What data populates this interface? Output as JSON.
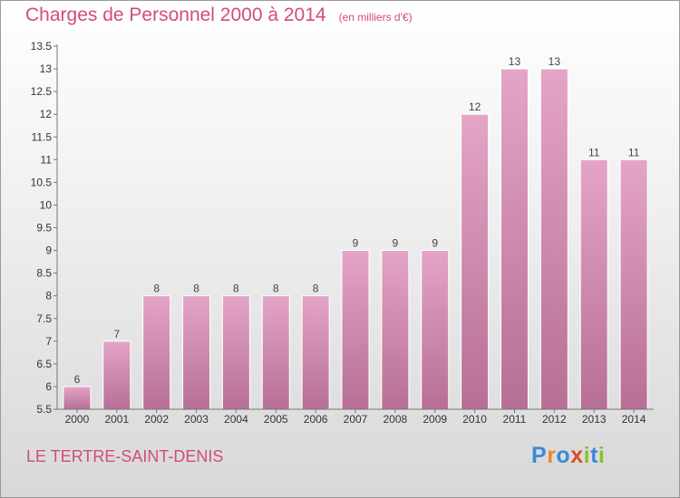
{
  "title": "Charges de Personnel 2000 à 2014",
  "unit_note": "(en milliers d'€)",
  "commune": "LE TERTRE-SAINT-DENIS",
  "logo": {
    "letters": [
      "P",
      "r",
      "o",
      "x",
      "i",
      "t",
      "i"
    ],
    "colors": [
      "#3a8ad6",
      "#e98a2a",
      "#3a8ad6",
      "#e04b2c",
      "#8bbf32",
      "#3a8ad6",
      "#8bbf32"
    ]
  },
  "colors": {
    "accent": "#d54a7e",
    "bar_top": "#e4a4c8",
    "bar_bottom": "#b76f96"
  },
  "chart_data": {
    "type": "bar",
    "categories": [
      "2000",
      "2001",
      "2002",
      "2003",
      "2004",
      "2005",
      "2006",
      "2007",
      "2008",
      "2009",
      "2010",
      "2011",
      "2012",
      "2013",
      "2014"
    ],
    "values": [
      6,
      7,
      8,
      8,
      8,
      8,
      8,
      9,
      9,
      9,
      12,
      13,
      13,
      11,
      11
    ],
    "value_labels": [
      "6",
      "7",
      "8",
      "8",
      "8",
      "8",
      "8",
      "9",
      "9",
      "9",
      "12",
      "13",
      "13",
      "11",
      "11"
    ],
    "yticks": [
      5.5,
      6,
      6.5,
      7,
      7.5,
      8,
      8.5,
      9,
      9.5,
      10,
      10.5,
      11,
      11.5,
      12,
      12.5,
      13,
      13.5
    ],
    "ytick_labels": [
      "5.5",
      "6",
      "6.5",
      "7",
      "7.5",
      "8",
      "8.5",
      "9",
      "9.5",
      "10",
      "10.5",
      "11",
      "11.5",
      "12",
      "12.5",
      "13",
      "13.5"
    ],
    "ylim": [
      5.5,
      13.5
    ],
    "grid": false,
    "legend": false
  }
}
